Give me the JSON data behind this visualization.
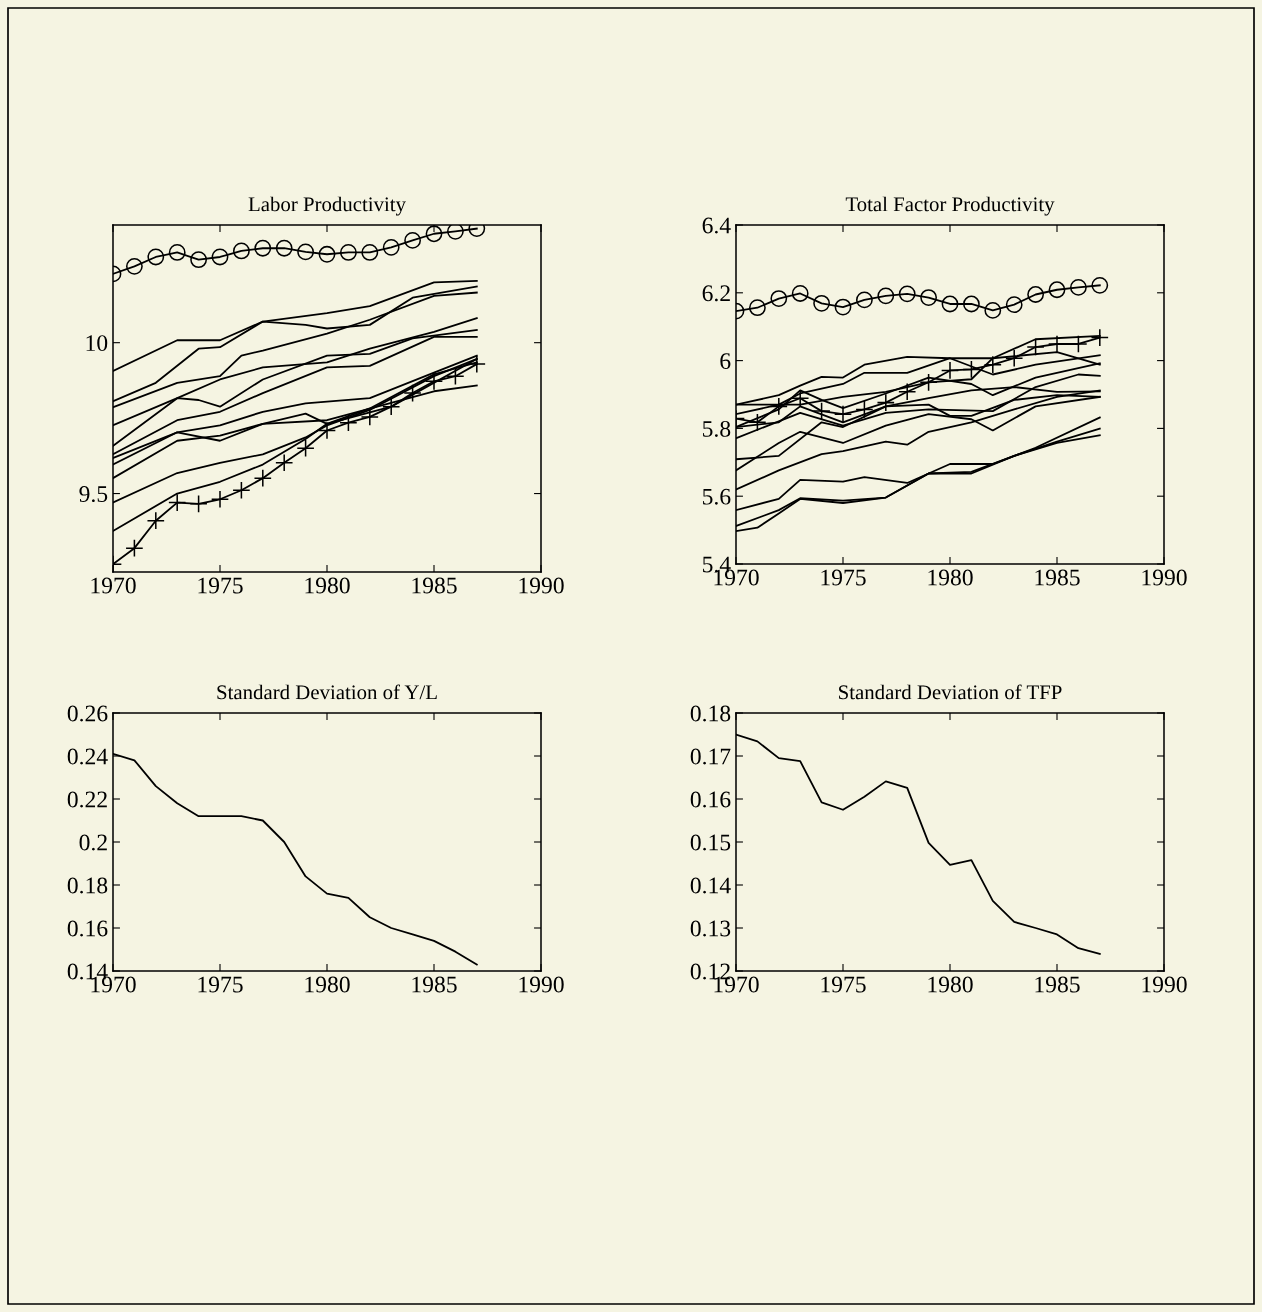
{
  "chart_data": [
    {
      "type": "line",
      "title": "Labor Productivity",
      "xlim": [
        1970,
        1990
      ],
      "xticks": [
        1970,
        1975,
        1980,
        1985,
        1990
      ],
      "ylim": [
        9.24,
        10.39
      ],
      "yticks": [
        9.5,
        10
      ],
      "marker": "none",
      "line_style": "solid",
      "x": [
        1970,
        1971,
        1972,
        1973,
        1974,
        1975,
        1976,
        1977,
        1978,
        1979,
        1980,
        1981,
        1982,
        1983,
        1984,
        1985,
        1986,
        1987
      ],
      "series": [
        {
          "color": "#000000",
          "marker": "circle",
          "values": [
            10.228,
            10.253,
            10.284,
            10.299,
            10.275,
            10.284,
            10.304,
            10.313,
            10.313,
            10.301,
            10.293,
            10.299,
            10.299,
            10.316,
            10.339,
            10.361,
            10.369,
            10.378
          ]
        },
        {
          "color": "#000000",
          "marker": "cross",
          "values": [
            9.266,
            9.319,
            9.41,
            9.47,
            9.466,
            9.481,
            9.511,
            9.551,
            9.602,
            9.65,
            9.709,
            9.735,
            9.754,
            9.788,
            9.833,
            9.872,
            9.889,
            9.929
          ]
        },
        {
          "color": "#000000",
          "x": [
            1970,
            1973,
            1975,
            1977,
            1980,
            1982,
            1985,
            1987
          ],
          "values": [
            9.906,
            10.008,
            10.008,
            10.07,
            10.098,
            10.121,
            10.2,
            10.205
          ]
        },
        {
          "color": "#000000",
          "x": [
            1970,
            1972,
            1974,
            1975,
            1977,
            1979,
            1980,
            1982,
            1984,
            1987
          ],
          "values": [
            9.806,
            9.867,
            9.98,
            9.985,
            10.07,
            10.059,
            10.047,
            10.059,
            10.149,
            10.186
          ]
        },
        {
          "color": "#000000",
          "x": [
            1970,
            1973,
            1975,
            1976,
            1977,
            1980,
            1982,
            1985,
            1987
          ],
          "values": [
            9.786,
            9.867,
            9.889,
            9.957,
            9.974,
            10.03,
            10.076,
            10.155,
            10.166
          ]
        },
        {
          "color": "#000000",
          "x": [
            1970,
            1973,
            1975,
            1977,
            1980,
            1982,
            1985,
            1987
          ],
          "values": [
            9.726,
            9.816,
            9.878,
            9.918,
            9.935,
            9.98,
            10.036,
            10.081
          ]
        },
        {
          "color": "#000000",
          "x": [
            1970,
            1973,
            1974,
            1975,
            1977,
            1980,
            1982,
            1984,
            1987
          ],
          "values": [
            9.658,
            9.816,
            9.81,
            9.788,
            9.878,
            9.957,
            9.963,
            10.014,
            10.042
          ]
        },
        {
          "color": "#000000",
          "x": [
            1970,
            1973,
            1975,
            1977,
            1980,
            1982,
            1985,
            1987
          ],
          "values": [
            9.63,
            9.743,
            9.771,
            9.833,
            9.918,
            9.923,
            10.019,
            10.019
          ]
        },
        {
          "color": "#000000",
          "x": [
            1970,
            1973,
            1975,
            1977,
            1979,
            1982,
            1985,
            1987
          ],
          "values": [
            9.618,
            9.703,
            9.726,
            9.771,
            9.799,
            9.816,
            9.901,
            9.957
          ]
        },
        {
          "color": "#000000",
          "x": [
            1970,
            1973,
            1975,
            1977,
            1979,
            1980,
            1982,
            1985,
            1987
          ],
          "values": [
            9.596,
            9.703,
            9.675,
            9.731,
            9.765,
            9.731,
            9.782,
            9.895,
            9.935
          ]
        },
        {
          "color": "#000000",
          "x": [
            1970,
            1973,
            1975,
            1977,
            1980,
            1985,
            1987
          ],
          "values": [
            9.551,
            9.675,
            9.692,
            9.731,
            9.743,
            9.839,
            9.858
          ]
        },
        {
          "color": "#000000",
          "x": [
            1970,
            1973,
            1975,
            1977,
            1979,
            1980,
            1982,
            1985,
            1987
          ],
          "values": [
            9.47,
            9.568,
            9.602,
            9.63,
            9.686,
            9.726,
            9.777,
            9.889,
            9.946
          ]
        },
        {
          "color": "#000000",
          "x": [
            1970,
            1973,
            1975,
            1977,
            1979,
            1980,
            1983,
            1987
          ],
          "values": [
            9.376,
            9.5,
            9.539,
            9.596,
            9.681,
            9.731,
            9.788,
            9.946
          ]
        }
      ]
    },
    {
      "type": "line",
      "title": "Total Factor Productivity",
      "xlim": [
        1970,
        1990
      ],
      "xticks": [
        1970,
        1975,
        1980,
        1985,
        1990
      ],
      "ylim": [
        5.4,
        6.4
      ],
      "yticks": [
        5.4,
        5.6,
        5.8,
        6,
        6.2,
        6.4
      ],
      "marker": "none",
      "line_style": "solid",
      "x": [
        1970,
        1971,
        1972,
        1973,
        1974,
        1975,
        1976,
        1977,
        1978,
        1979,
        1980,
        1981,
        1982,
        1983,
        1984,
        1985,
        1986,
        1987
      ],
      "series": [
        {
          "color": "#000000",
          "marker": "circle",
          "values": [
            6.146,
            6.156,
            6.183,
            6.198,
            6.169,
            6.158,
            6.179,
            6.191,
            6.197,
            6.186,
            6.167,
            6.167,
            6.148,
            6.165,
            6.195,
            6.209,
            6.216,
            6.222
          ]
        },
        {
          "color": "#000000",
          "marker": "cross",
          "values": [
            5.829,
            5.818,
            5.865,
            5.889,
            5.851,
            5.842,
            5.856,
            5.876,
            5.908,
            5.936,
            5.971,
            5.974,
            5.988,
            6.007,
            6.04,
            6.049,
            6.049,
            6.068
          ]
        },
        {
          "color": "#000000",
          "x": [
            1970,
            1972,
            1973,
            1974,
            1975,
            1976,
            1978,
            1980,
            1982,
            1984,
            1987
          ],
          "values": [
            5.87,
            5.898,
            5.926,
            5.952,
            5.95,
            5.988,
            6.011,
            6.007,
            6.007,
            6.063,
            6.073
          ]
        },
        {
          "color": "#000000",
          "x": [
            1970,
            1973,
            1975,
            1977,
            1979,
            1981,
            1982,
            1985,
            1987
          ],
          "values": [
            5.87,
            5.87,
            5.893,
            5.908,
            5.936,
            5.945,
            6.007,
            6.025,
            5.988
          ]
        },
        {
          "color": "#000000",
          "x": [
            1970,
            1972,
            1973,
            1975,
            1976,
            1978,
            1980,
            1982,
            1984,
            1987
          ],
          "values": [
            5.842,
            5.87,
            5.903,
            5.931,
            5.964,
            5.964,
            6.007,
            5.959,
            5.988,
            6.016
          ]
        },
        {
          "color": "#000000",
          "x": [
            1970,
            1972,
            1973,
            1974,
            1975,
            1977,
            1979,
            1981,
            1982,
            1984,
            1987
          ],
          "values": [
            5.804,
            5.856,
            5.912,
            5.884,
            5.86,
            5.903,
            5.95,
            5.931,
            5.898,
            5.95,
            5.992
          ]
        },
        {
          "color": "#000000",
          "x": [
            1970,
            1972,
            1973,
            1975,
            1977,
            1979,
            1981,
            1983,
            1985,
            1987
          ],
          "values": [
            5.804,
            5.818,
            5.865,
            5.818,
            5.865,
            5.889,
            5.912,
            5.922,
            5.908,
            5.909
          ]
        },
        {
          "color": "#000000",
          "x": [
            1970,
            1973,
            1975,
            1977,
            1979,
            1982,
            1984,
            1986,
            1987
          ],
          "values": [
            5.771,
            5.846,
            5.808,
            5.846,
            5.856,
            5.851,
            5.922,
            5.959,
            5.955
          ]
        },
        {
          "color": "#000000",
          "x": [
            1970,
            1972,
            1974,
            1975,
            1977,
            1979,
            1980,
            1981,
            1983,
            1985,
            1987
          ],
          "values": [
            5.709,
            5.719,
            5.818,
            5.804,
            5.865,
            5.87,
            5.837,
            5.837,
            5.884,
            5.898,
            5.893
          ]
        },
        {
          "color": "#000000",
          "x": [
            1970,
            1972,
            1973,
            1975,
            1977,
            1979,
            1981,
            1982,
            1984,
            1987
          ],
          "values": [
            5.676,
            5.757,
            5.79,
            5.757,
            5.808,
            5.842,
            5.827,
            5.794,
            5.865,
            5.893
          ]
        },
        {
          "color": "#000000",
          "x": [
            1970,
            1972,
            1974,
            1975,
            1977,
            1978,
            1979,
            1981,
            1983,
            1985,
            1987
          ],
          "values": [
            5.62,
            5.676,
            5.724,
            5.733,
            5.761,
            5.752,
            5.79,
            5.818,
            5.856,
            5.893,
            5.912
          ]
        },
        {
          "color": "#000000",
          "x": [
            1970,
            1972,
            1973,
            1975,
            1976,
            1978,
            1979,
            1980,
            1982,
            1984,
            1987
          ],
          "values": [
            5.559,
            5.592,
            5.648,
            5.643,
            5.656,
            5.639,
            5.667,
            5.695,
            5.695,
            5.743,
            5.832
          ]
        },
        {
          "color": "#000000",
          "x": [
            1970,
            1972,
            1973,
            1975,
            1977,
            1979,
            1981,
            1983,
            1985,
            1987
          ],
          "values": [
            5.512,
            5.559,
            5.594,
            5.587,
            5.596,
            5.667,
            5.667,
            5.719,
            5.761,
            5.799
          ]
        },
        {
          "color": "#000000",
          "x": [
            1970,
            1971,
            1972,
            1973,
            1975,
            1977,
            1979,
            1981,
            1983,
            1985,
            1987
          ],
          "values": [
            5.497,
            5.507,
            5.549,
            5.592,
            5.58,
            5.596,
            5.667,
            5.672,
            5.719,
            5.757,
            5.78
          ]
        }
      ]
    },
    {
      "type": "line",
      "title": "Standard Deviation of Y/L",
      "xlim": [
        1970,
        1990
      ],
      "xticks": [
        1970,
        1975,
        1980,
        1985,
        1990
      ],
      "ylim": [
        0.14,
        0.26
      ],
      "yticks": [
        0.14,
        0.16,
        0.18,
        0.2,
        0.22,
        0.24,
        0.26
      ],
      "marker": "none",
      "line_style": "solid",
      "x": [
        1970,
        1971,
        1972,
        1973,
        1974,
        1975,
        1976,
        1977,
        1978,
        1979,
        1980,
        1981,
        1982,
        1983,
        1984,
        1985,
        1986,
        1987
      ],
      "series": [
        {
          "color": "#000000",
          "values": [
            0.241,
            0.238,
            0.226,
            0.218,
            0.212,
            0.212,
            0.212,
            0.21,
            0.2,
            0.184,
            0.176,
            0.174,
            0.165,
            0.16,
            0.157,
            0.154,
            0.149,
            0.143
          ]
        }
      ]
    },
    {
      "type": "line",
      "title": "Standard Deviation of TFP",
      "xlim": [
        1970,
        1990
      ],
      "xticks": [
        1970,
        1975,
        1980,
        1985,
        1990
      ],
      "ylim": [
        0.12,
        0.18
      ],
      "yticks": [
        0.12,
        0.13,
        0.14,
        0.15,
        0.16,
        0.17,
        0.18
      ],
      "marker": "none",
      "line_style": "solid",
      "x": [
        1970,
        1971,
        1972,
        1973,
        1974,
        1975,
        1976,
        1977,
        1978,
        1979,
        1980,
        1981,
        1982,
        1983,
        1984,
        1985,
        1986,
        1987
      ],
      "series": [
        {
          "color": "#000000",
          "values": [
            0.175,
            0.1734,
            0.1695,
            0.1688,
            0.1592,
            0.1575,
            0.1605,
            0.1641,
            0.1626,
            0.1498,
            0.1447,
            0.1458,
            0.1363,
            0.1314,
            0.13,
            0.1285,
            0.1253,
            0.124
          ]
        }
      ]
    }
  ]
}
